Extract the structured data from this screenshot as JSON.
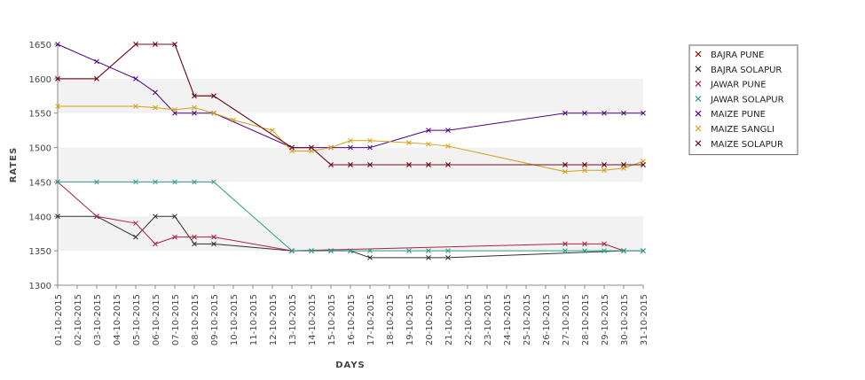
{
  "chart_data": {
    "type": "line",
    "xlabel": "DAYS",
    "ylabel": "RATES",
    "ylim": [
      1300,
      1650
    ],
    "yticks": [
      1300,
      1350,
      1400,
      1450,
      1500,
      1550,
      1600,
      1650
    ],
    "grid": "alternating horizontal bands",
    "legend_position": "right",
    "categories": [
      "01-10-2015",
      "02-10-2015",
      "03-10-2015",
      "04-10-2015",
      "05-10-2015",
      "06-10-2015",
      "07-10-2015",
      "08-10-2015",
      "09-10-2015",
      "10-10-2015",
      "11-10-2015",
      "12-10-2015",
      "13-10-2015",
      "14-10-2015",
      "15-10-2015",
      "16-10-2015",
      "17-10-2015",
      "18-10-2015",
      "19-10-2015",
      "20-10-2015",
      "21-10-2015",
      "22-10-2015",
      "23-10-2015",
      "24-10-2015",
      "25-10-2015",
      "26-10-2015",
      "27-10-2015",
      "28-10-2015",
      "29-10-2015",
      "30-10-2015",
      "31-10-2015"
    ],
    "series": [
      {
        "name": "BAJRA PUNE",
        "color": "#8b0000",
        "values": [
          1600,
          null,
          1600,
          null,
          1650,
          1650,
          1650,
          1575,
          1575,
          null,
          null,
          null,
          1500,
          1500,
          1475,
          1475,
          1475,
          null,
          1475,
          1475,
          1475,
          null,
          null,
          null,
          null,
          null,
          1475,
          1475,
          1475,
          1475,
          1475
        ]
      },
      {
        "name": "BAJRA SOLAPUR",
        "color": "#303030",
        "values": [
          1400,
          null,
          1400,
          null,
          1370,
          1400,
          1400,
          1360,
          1360,
          null,
          null,
          null,
          1350,
          1350,
          1350,
          1350,
          1340,
          null,
          null,
          1340,
          1340,
          null,
          null,
          null,
          null,
          null,
          null,
          null,
          null,
          1350,
          1350
        ]
      },
      {
        "name": "JAWAR PUNE",
        "color": "#b02040",
        "values": [
          1450,
          null,
          1400,
          null,
          1390,
          1360,
          1370,
          1370,
          1370,
          null,
          null,
          null,
          1350,
          null,
          null,
          null,
          null,
          null,
          null,
          null,
          null,
          null,
          null,
          null,
          null,
          null,
          1360,
          1360,
          1360,
          1350,
          null
        ]
      },
      {
        "name": "JAWAR SOLAPUR",
        "color": "#2a9d8f",
        "values": [
          1450,
          null,
          1450,
          null,
          1450,
          1450,
          1450,
          1450,
          1450,
          null,
          null,
          null,
          1350,
          1350,
          1350,
          1350,
          1350,
          null,
          1350,
          1350,
          1350,
          null,
          null,
          null,
          null,
          null,
          1350,
          1350,
          1350,
          1350,
          1350
        ]
      },
      {
        "name": "MAIZE PUNE",
        "color": "#4b0082",
        "values": [
          1650,
          null,
          1625,
          null,
          1600,
          1580,
          1550,
          1550,
          1550,
          null,
          null,
          null,
          1500,
          1500,
          1500,
          1500,
          1500,
          null,
          null,
          1525,
          1525,
          null,
          null,
          null,
          null,
          null,
          1550,
          1550,
          1550,
          1550,
          1550
        ]
      },
      {
        "name": "MAIZE SANGLI",
        "color": "#d4a017",
        "values": [
          1560,
          null,
          null,
          null,
          1560,
          1558,
          1555,
          1558,
          1550,
          1540,
          null,
          1525,
          1495,
          1495,
          1500,
          1510,
          1510,
          null,
          1507,
          1505,
          1502,
          null,
          null,
          null,
          null,
          null,
          1465,
          1467,
          1467,
          1470,
          1480
        ]
      },
      {
        "name": "MAIZE SOLAPUR",
        "color": "#6b1020",
        "values": [
          1600,
          null,
          1600,
          null,
          1650,
          1650,
          1650,
          1575,
          1575,
          null,
          null,
          null,
          1500,
          1500,
          1475,
          1475,
          1475,
          null,
          1475,
          1475,
          1475,
          null,
          null,
          null,
          null,
          null,
          1475,
          1475,
          1475,
          1475,
          1475
        ]
      }
    ]
  }
}
